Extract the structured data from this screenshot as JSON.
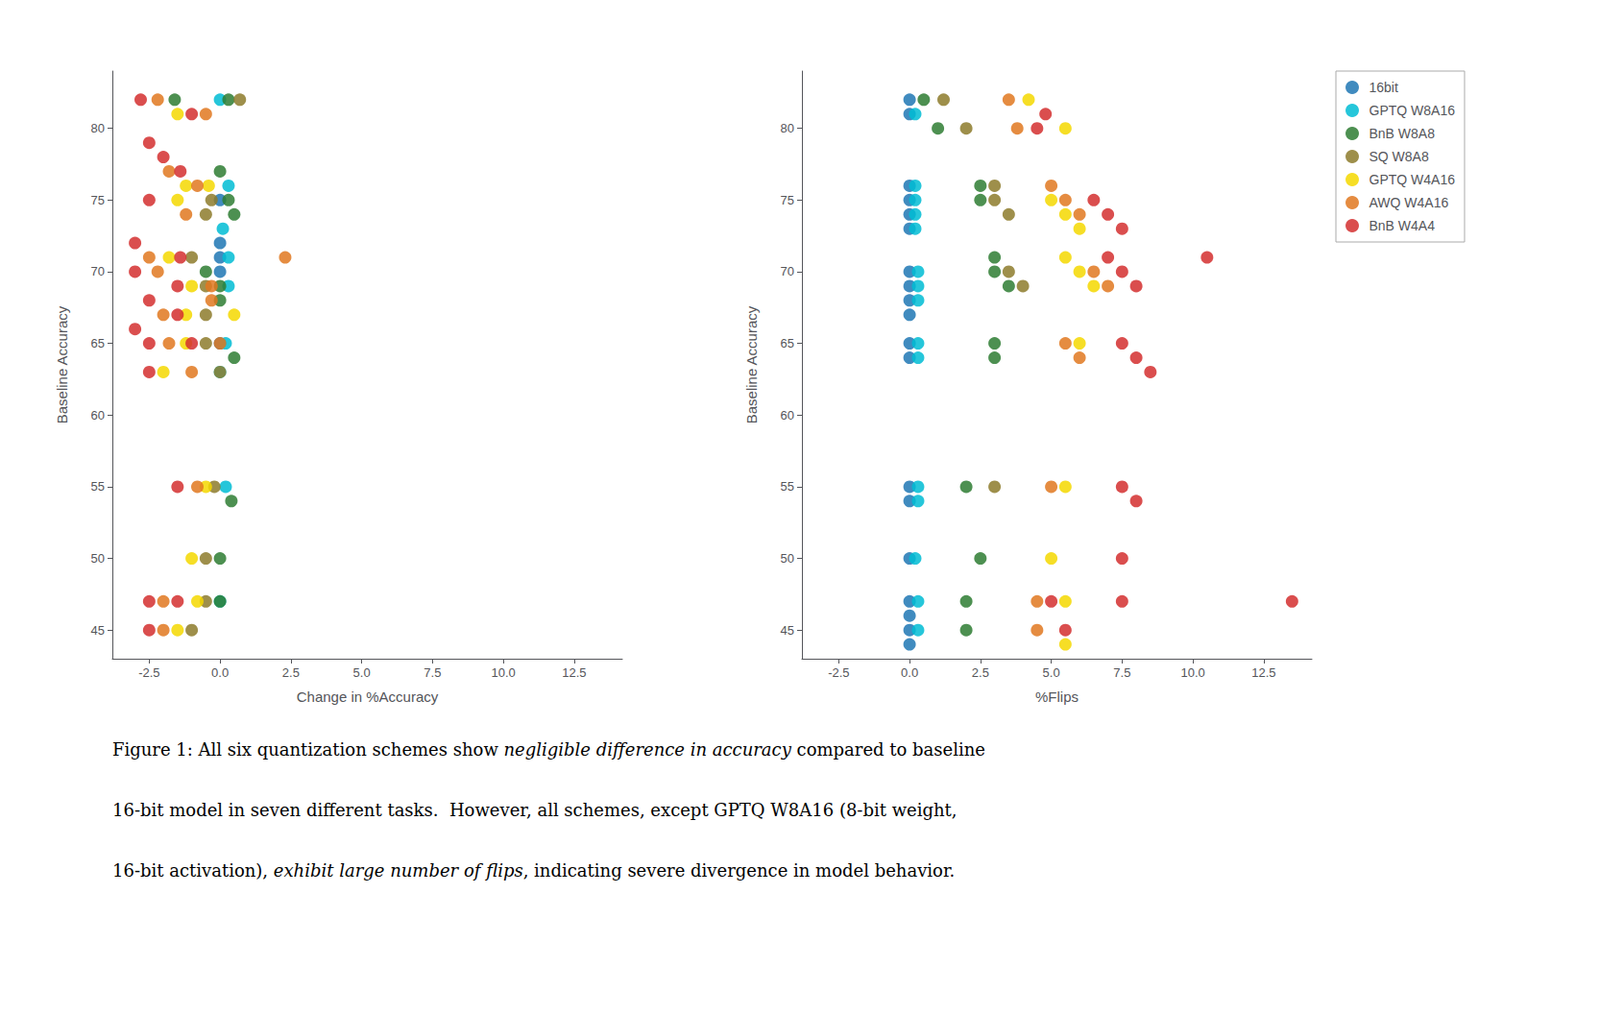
{
  "chart_data": [
    {
      "type": "scatter",
      "x_label": "Change in %Accuracy",
      "y_label": "Baseline Accuracy",
      "xlim": [
        -3.8,
        14.2
      ],
      "ylim": [
        43,
        84
      ],
      "xticks": [
        -2.5,
        {
          "value": 0.0,
          "label": "0.0"
        },
        2.5,
        {
          "value": 5.0,
          "label": "5.0"
        },
        7.5,
        {
          "value": 10.0,
          "label": "10.0"
        },
        12.5
      ],
      "yticks": [
        45,
        50,
        55,
        60,
        65,
        70,
        75,
        80
      ],
      "grid": false,
      "series": [
        {
          "name": "16bit",
          "color": "#1f77b4",
          "x": [
            0.0,
            0.0,
            0.0,
            0.0,
            0.0
          ],
          "y": [
            75,
            72,
            71,
            70,
            65
          ]
        },
        {
          "name": "GPTQ W8A16",
          "color": "#00bcd4",
          "x": [
            0.0,
            0.3,
            0.1,
            0.3,
            0.3,
            0.2,
            0.0,
            0.2,
            0.0
          ],
          "y": [
            82,
            76,
            73,
            71,
            69,
            65,
            63,
            55,
            47
          ]
        },
        {
          "name": "BnB W8A8",
          "color": "#2e7d32",
          "x": [
            -1.6,
            0.3,
            0.0,
            0.3,
            0.5,
            -0.5,
            0.0,
            0.0,
            0.5,
            0.4,
            0.0,
            0.0
          ],
          "y": [
            82,
            82,
            77,
            75,
            74,
            70,
            69,
            68,
            64,
            54,
            50,
            47
          ]
        },
        {
          "name": "SQ W8A8",
          "color": "#8d7b2b",
          "x": [
            0.7,
            -0.3,
            -0.5,
            -1.0,
            -0.5,
            -0.5,
            -0.5,
            0.0,
            -0.2,
            -0.5,
            -0.5,
            -1.0
          ],
          "y": [
            82,
            75,
            74,
            71,
            69,
            67,
            65,
            63,
            55,
            50,
            47,
            45
          ]
        },
        {
          "name": "GPTQ W4A16",
          "color": "#f5d800",
          "x": [
            -1.5,
            -1.2,
            -0.4,
            -1.5,
            -1.8,
            -1.0,
            -1.2,
            0.5,
            -1.2,
            -2.0,
            -0.5,
            -1.0,
            -0.8,
            -1.5
          ],
          "y": [
            81,
            76,
            76,
            75,
            71,
            69,
            67,
            67,
            65,
            63,
            55,
            50,
            47,
            45
          ]
        },
        {
          "name": "AWQ W4A16",
          "color": "#e07820",
          "x": [
            -2.2,
            -0.5,
            -1.8,
            -0.8,
            -1.2,
            -2.5,
            2.3,
            -2.2,
            -0.3,
            -2.0,
            -0.3,
            -1.8,
            0.0,
            -1.0,
            -0.8,
            -2.0,
            -2.0
          ],
          "y": [
            82,
            81,
            77,
            76,
            74,
            71,
            71,
            70,
            69,
            67,
            68,
            65,
            65,
            63,
            55,
            47,
            45
          ]
        },
        {
          "name": "BnB W4A4",
          "color": "#d32f2f",
          "x": [
            -2.8,
            -1.0,
            -2.5,
            -2.0,
            -1.4,
            -2.5,
            -3.0,
            -1.4,
            -3.0,
            -1.5,
            -2.5,
            -1.5,
            -3.0,
            -2.5,
            -1.0,
            -2.5,
            -1.5,
            -2.5,
            -1.5,
            -2.5
          ],
          "y": [
            82,
            81,
            79,
            78,
            77,
            75,
            72,
            71,
            70,
            69,
            68,
            67,
            66,
            65,
            65,
            63,
            55,
            47,
            47,
            45
          ]
        }
      ],
      "annotations": [
        [
          "Figure 1: All six quantization schemes show ",
          "negligible difference in accuracy",
          " compared to baseline"
        ],
        [
          "16-bit model in seven different tasks.  However, all schemes, except GPTQ W8A16 (8-bit weight,"
        ],
        [
          "16-bit activation), ",
          "exhibit large number of flips",
          ", indicating severe divergence in model behavior."
        ]
      ]
    },
    {
      "type": "scatter",
      "x_label": "%Flips",
      "y_label": "Baseline Accuracy",
      "xlim": [
        -3.8,
        14.2
      ],
      "ylim": [
        43,
        84
      ],
      "xticks": [
        -2.5,
        {
          "value": 0.0,
          "label": "0.0"
        },
        2.5,
        {
          "value": 5.0,
          "label": "5.0"
        },
        7.5,
        {
          "value": 10.0,
          "label": "10.0"
        },
        12.5
      ],
      "yticks": [
        45,
        50,
        55,
        60,
        65,
        70,
        75,
        80
      ],
      "grid": false,
      "legend": "right",
      "series": [
        {
          "name": "16bit",
          "color": "#1f77b4",
          "x": [
            0.0,
            0.0,
            0.0,
            0.0,
            0.0,
            0.0,
            0.0,
            0.0,
            0.0,
            0.0,
            0.0,
            0.0,
            0.0,
            0.0,
            0.0,
            0.0,
            0.0,
            0.0,
            0.0
          ],
          "y": [
            82,
            81,
            76,
            75,
            74,
            73,
            70,
            69,
            68,
            67,
            65,
            64,
            55,
            54,
            50,
            47,
            46,
            45,
            44
          ]
        },
        {
          "name": "GPTQ W8A16",
          "color": "#00bcd4",
          "x": [
            0.2,
            0.2,
            0.2,
            0.2,
            0.2,
            0.3,
            0.3,
            0.3,
            0.3,
            0.3,
            0.3,
            0.3,
            0.2,
            0.3,
            0.3
          ],
          "y": [
            81,
            76,
            75,
            74,
            73,
            70,
            69,
            68,
            65,
            64,
            55,
            54,
            50,
            47,
            45
          ]
        },
        {
          "name": "BnB W8A8",
          "color": "#2e7d32",
          "x": [
            0.5,
            1.0,
            2.5,
            2.5,
            3.0,
            3.0,
            3.5,
            3.0,
            3.0,
            2.0,
            2.5,
            2.0,
            2.0
          ],
          "y": [
            82,
            80,
            76,
            75,
            71,
            70,
            69,
            65,
            64,
            55,
            50,
            47,
            45
          ]
        },
        {
          "name": "SQ W8A8",
          "color": "#8d7b2b",
          "x": [
            1.2,
            2.0,
            3.0,
            3.0,
            3.5,
            3.5,
            4.0,
            3.0
          ],
          "y": [
            82,
            80,
            76,
            75,
            74,
            70,
            69,
            55
          ]
        },
        {
          "name": "GPTQ W4A16",
          "color": "#f5d800",
          "x": [
            4.2,
            5.5,
            5.0,
            5.5,
            6.0,
            5.5,
            6.0,
            6.5,
            6.0,
            5.5,
            5.0,
            5.5,
            5.5
          ],
          "y": [
            82,
            80,
            75,
            74,
            73,
            71,
            70,
            69,
            65,
            55,
            50,
            47,
            44
          ]
        },
        {
          "name": "AWQ W4A16",
          "color": "#e07820",
          "x": [
            3.5,
            3.8,
            5.0,
            5.5,
            6.0,
            6.5,
            7.0,
            5.5,
            6.0,
            5.0,
            4.5,
            4.5
          ],
          "y": [
            82,
            80,
            76,
            75,
            74,
            70,
            69,
            65,
            64,
            55,
            47,
            45
          ]
        },
        {
          "name": "BnB W4A4",
          "color": "#d32f2f",
          "x": [
            4.8,
            4.5,
            6.5,
            7.0,
            7.5,
            7.0,
            7.5,
            8.0,
            10.5,
            7.5,
            8.0,
            8.5,
            7.5,
            8.0,
            7.5,
            5.0,
            7.5,
            13.5,
            5.5
          ],
          "y": [
            81,
            80,
            75,
            74,
            73,
            71,
            70,
            69,
            71,
            65,
            64,
            63,
            55,
            54,
            50,
            47,
            47,
            47,
            45
          ]
        }
      ]
    }
  ]
}
